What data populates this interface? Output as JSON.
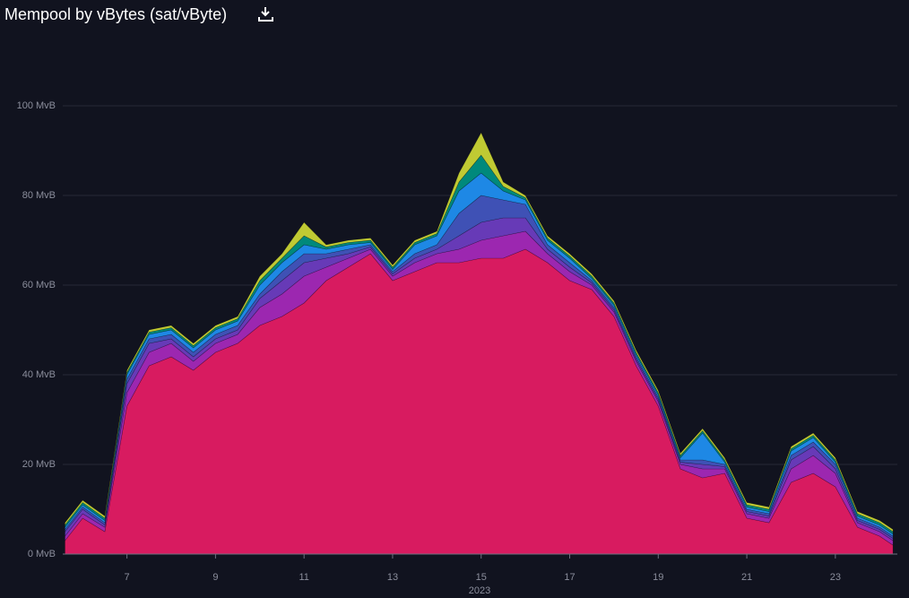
{
  "chart_data": {
    "type": "stacked-area",
    "title": "Mempool by vBytes (sat/vByte)",
    "xlabel": "2023",
    "x": [
      5.6,
      6,
      6.5,
      7,
      7.5,
      8,
      8.5,
      9,
      9.5,
      10,
      10.5,
      11,
      11.5,
      12,
      12.5,
      13,
      13.5,
      14,
      14.5,
      15,
      15.5,
      16,
      16.5,
      17,
      17.5,
      18,
      18.5,
      19,
      19.5,
      20,
      20.5,
      21,
      21.5,
      22,
      22.5,
      23,
      23.5,
      24,
      24.3
    ],
    "xlim": [
      5.55,
      24.4
    ],
    "xticks": [
      7,
      9,
      11,
      13,
      15,
      17,
      19,
      21,
      23
    ],
    "ylim": [
      0,
      110
    ],
    "yticks": [
      {
        "value": 0,
        "label": "0 MvB"
      },
      {
        "value": 20,
        "label": "20 MvB"
      },
      {
        "value": 40,
        "label": "40 MvB"
      },
      {
        "value": 60,
        "label": "60 MvB"
      },
      {
        "value": 80,
        "label": "80 MvB"
      },
      {
        "value": 100,
        "label": "100 MvB"
      }
    ],
    "grid": true,
    "series": [
      {
        "color": "#d81b60",
        "values": [
          3,
          8,
          5,
          33,
          42,
          44,
          41,
          45,
          47,
          51,
          53,
          56,
          61,
          64,
          67,
          61,
          63,
          65,
          65,
          66,
          66,
          68,
          65,
          61,
          59,
          53,
          42,
          33,
          19,
          17,
          18,
          8,
          7,
          16,
          18,
          15,
          6,
          4,
          2
        ]
      },
      {
        "color": "#9c27b0",
        "values": [
          1,
          1,
          1,
          3,
          3,
          3,
          2,
          2,
          2,
          4,
          5,
          6,
          3,
          2,
          1,
          1,
          2,
          2,
          3,
          4,
          5,
          4,
          2,
          2,
          1,
          1,
          1,
          1,
          1,
          2,
          1,
          1,
          1,
          3,
          4,
          3,
          1,
          1,
          1
        ]
      },
      {
        "color": "#673ab7",
        "values": [
          1,
          1,
          0.5,
          2,
          2,
          1,
          1,
          1,
          1,
          2,
          3,
          3,
          2,
          1,
          0.5,
          0.5,
          1,
          1,
          3,
          4,
          4,
          3,
          1,
          1,
          0.5,
          0.5,
          0.5,
          0.5,
          0.5,
          1,
          0.5,
          0.5,
          0.5,
          2,
          2,
          1,
          0.5,
          0.5,
          0.5
        ]
      },
      {
        "color": "#3f51b5",
        "values": [
          0.5,
          0.5,
          0.5,
          1,
          1,
          1,
          1,
          1,
          1,
          1,
          2,
          2,
          1,
          1,
          0.5,
          0.5,
          1,
          1,
          5,
          6,
          4,
          3,
          1,
          1,
          0.5,
          0.5,
          0.5,
          0.5,
          0.5,
          1,
          0.5,
          0.5,
          0.5,
          1,
          1,
          1,
          0.5,
          0.5,
          0.5
        ]
      },
      {
        "color": "#1e88e5",
        "values": [
          0.5,
          0.5,
          0.5,
          1,
          1,
          1,
          1,
          1,
          1,
          2,
          2,
          2,
          1,
          1,
          0.5,
          0.5,
          2,
          2,
          5,
          5,
          2,
          1,
          1,
          1,
          0.5,
          0.5,
          0.5,
          0.5,
          0.5,
          6,
          0.5,
          0.5,
          0.5,
          1,
          1,
          0.5,
          0.5,
          0.5,
          0.5
        ]
      },
      {
        "color": "#00897b",
        "values": [
          0.5,
          0.5,
          0.5,
          0.5,
          0.5,
          0.5,
          0.5,
          0.5,
          0.5,
          1,
          1,
          2,
          0.5,
          0.5,
          0.5,
          0.5,
          0.5,
          0.5,
          2,
          4,
          1,
          0.5,
          0.5,
          0.5,
          0.5,
          0.5,
          0.5,
          0.5,
          0.5,
          0.5,
          0.5,
          0.5,
          0.5,
          0.5,
          0.5,
          0.5,
          0.5,
          0.5,
          0.5
        ]
      },
      {
        "color": "#c0ca33",
        "values": [
          0.5,
          0.5,
          0.5,
          0.5,
          0.5,
          0.5,
          0.5,
          0.5,
          0.5,
          1,
          1,
          3,
          0.5,
          0.5,
          0.5,
          0.5,
          0.5,
          0.5,
          2,
          5,
          1,
          0.5,
          0.5,
          0.5,
          0.5,
          0.5,
          0.5,
          0.5,
          0.5,
          0.5,
          0.5,
          0.5,
          0.5,
          0.5,
          0.5,
          0.5,
          0.5,
          0.5,
          0.5
        ]
      }
    ]
  }
}
